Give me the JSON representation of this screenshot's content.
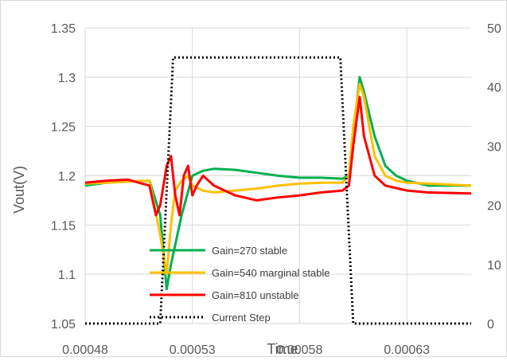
{
  "chart_data": {
    "type": "line",
    "ylabel": "Vout(V)",
    "xlabel": "Time",
    "xlim": [
      0.00048,
      0.00066
    ],
    "ylim": [
      1.05,
      1.35
    ],
    "y2lim": [
      0,
      50
    ],
    "grid": true,
    "legend_position": "inside-lower-center",
    "x_ticks": [
      {
        "value": 0.00048,
        "label": "0.00048"
      },
      {
        "value": 0.00053,
        "label": "0.00053"
      },
      {
        "value": 0.00058,
        "label": "0.00058"
      },
      {
        "value": 0.00063,
        "label": "0.00063"
      }
    ],
    "y_ticks": [
      {
        "value": 1.05,
        "label": "1.05"
      },
      {
        "value": 1.1,
        "label": "1.1"
      },
      {
        "value": 1.15,
        "label": "1.15"
      },
      {
        "value": 1.2,
        "label": "1.2"
      },
      {
        "value": 1.25,
        "label": "1.25"
      },
      {
        "value": 1.3,
        "label": "1.3"
      },
      {
        "value": 1.35,
        "label": "1.35"
      }
    ],
    "y2_ticks": [
      {
        "value": 0,
        "label": "0"
      },
      {
        "value": 10,
        "label": "10"
      },
      {
        "value": 20,
        "label": "20"
      },
      {
        "value": 30,
        "label": "30"
      },
      {
        "value": 40,
        "label": "40"
      },
      {
        "value": 50,
        "label": "50"
      }
    ],
    "series": [
      {
        "name": "Gain=270 stable",
        "color": "#00b050",
        "axis": "left",
        "x": [
          0.00048,
          0.00049,
          0.0005,
          0.00051,
          0.000515,
          0.000518,
          0.00052,
          0.000522,
          0.000525,
          0.00053,
          0.000535,
          0.00054,
          0.00055,
          0.00056,
          0.00057,
          0.00058,
          0.00059,
          0.0006,
          0.000603,
          0.000605,
          0.000608,
          0.00061,
          0.000615,
          0.00062,
          0.000625,
          0.00063,
          0.00064,
          0.00066
        ],
        "y": [
          1.19,
          1.193,
          1.194,
          1.195,
          1.16,
          1.085,
          1.11,
          1.13,
          1.16,
          1.2,
          1.205,
          1.207,
          1.206,
          1.203,
          1.2,
          1.198,
          1.198,
          1.197,
          1.2,
          1.24,
          1.3,
          1.285,
          1.24,
          1.21,
          1.2,
          1.195,
          1.19,
          1.19
        ]
      },
      {
        "name": "Gain=540 marginal stable",
        "color": "#ffc000",
        "axis": "left",
        "x": [
          0.00048,
          0.00049,
          0.0005,
          0.00051,
          0.000515,
          0.000518,
          0.00052,
          0.000522,
          0.000525,
          0.000528,
          0.00053,
          0.000535,
          0.00054,
          0.00055,
          0.00056,
          0.00057,
          0.00058,
          0.00059,
          0.0006,
          0.000603,
          0.000605,
          0.000608,
          0.00061,
          0.000615,
          0.00062,
          0.000625,
          0.00063,
          0.00064,
          0.00066
        ],
        "y": [
          1.192,
          1.193,
          1.194,
          1.195,
          1.14,
          1.1,
          1.15,
          1.185,
          1.195,
          1.2,
          1.19,
          1.185,
          1.183,
          1.185,
          1.187,
          1.19,
          1.192,
          1.193,
          1.193,
          1.2,
          1.25,
          1.293,
          1.28,
          1.22,
          1.2,
          1.195,
          1.193,
          1.192,
          1.19
        ]
      },
      {
        "name": "Gain=810 unstable",
        "color": "#ff0000",
        "axis": "left",
        "x": [
          0.00048,
          0.00049,
          0.0005,
          0.00051,
          0.000513,
          0.000515,
          0.000518,
          0.00052,
          0.000522,
          0.000524,
          0.000526,
          0.000528,
          0.00053,
          0.000532,
          0.000535,
          0.00054,
          0.00055,
          0.00056,
          0.00057,
          0.00058,
          0.00059,
          0.0006,
          0.000603,
          0.000605,
          0.000608,
          0.00061,
          0.000615,
          0.00062,
          0.00063,
          0.00064,
          0.00066
        ],
        "y": [
          1.193,
          1.195,
          1.196,
          1.19,
          1.16,
          1.17,
          1.21,
          1.22,
          1.18,
          1.16,
          1.2,
          1.21,
          1.18,
          1.19,
          1.2,
          1.19,
          1.18,
          1.175,
          1.178,
          1.18,
          1.183,
          1.185,
          1.19,
          1.23,
          1.28,
          1.24,
          1.2,
          1.19,
          1.185,
          1.183,
          1.182
        ]
      },
      {
        "name": "Current Step",
        "color": "#000000",
        "axis": "right",
        "x": [
          0.00048,
          0.0005,
          0.000515,
          0.000521,
          0.000599,
          0.000605,
          0.00066
        ],
        "y": [
          0,
          0,
          0,
          45,
          45,
          0,
          0
        ]
      }
    ]
  }
}
